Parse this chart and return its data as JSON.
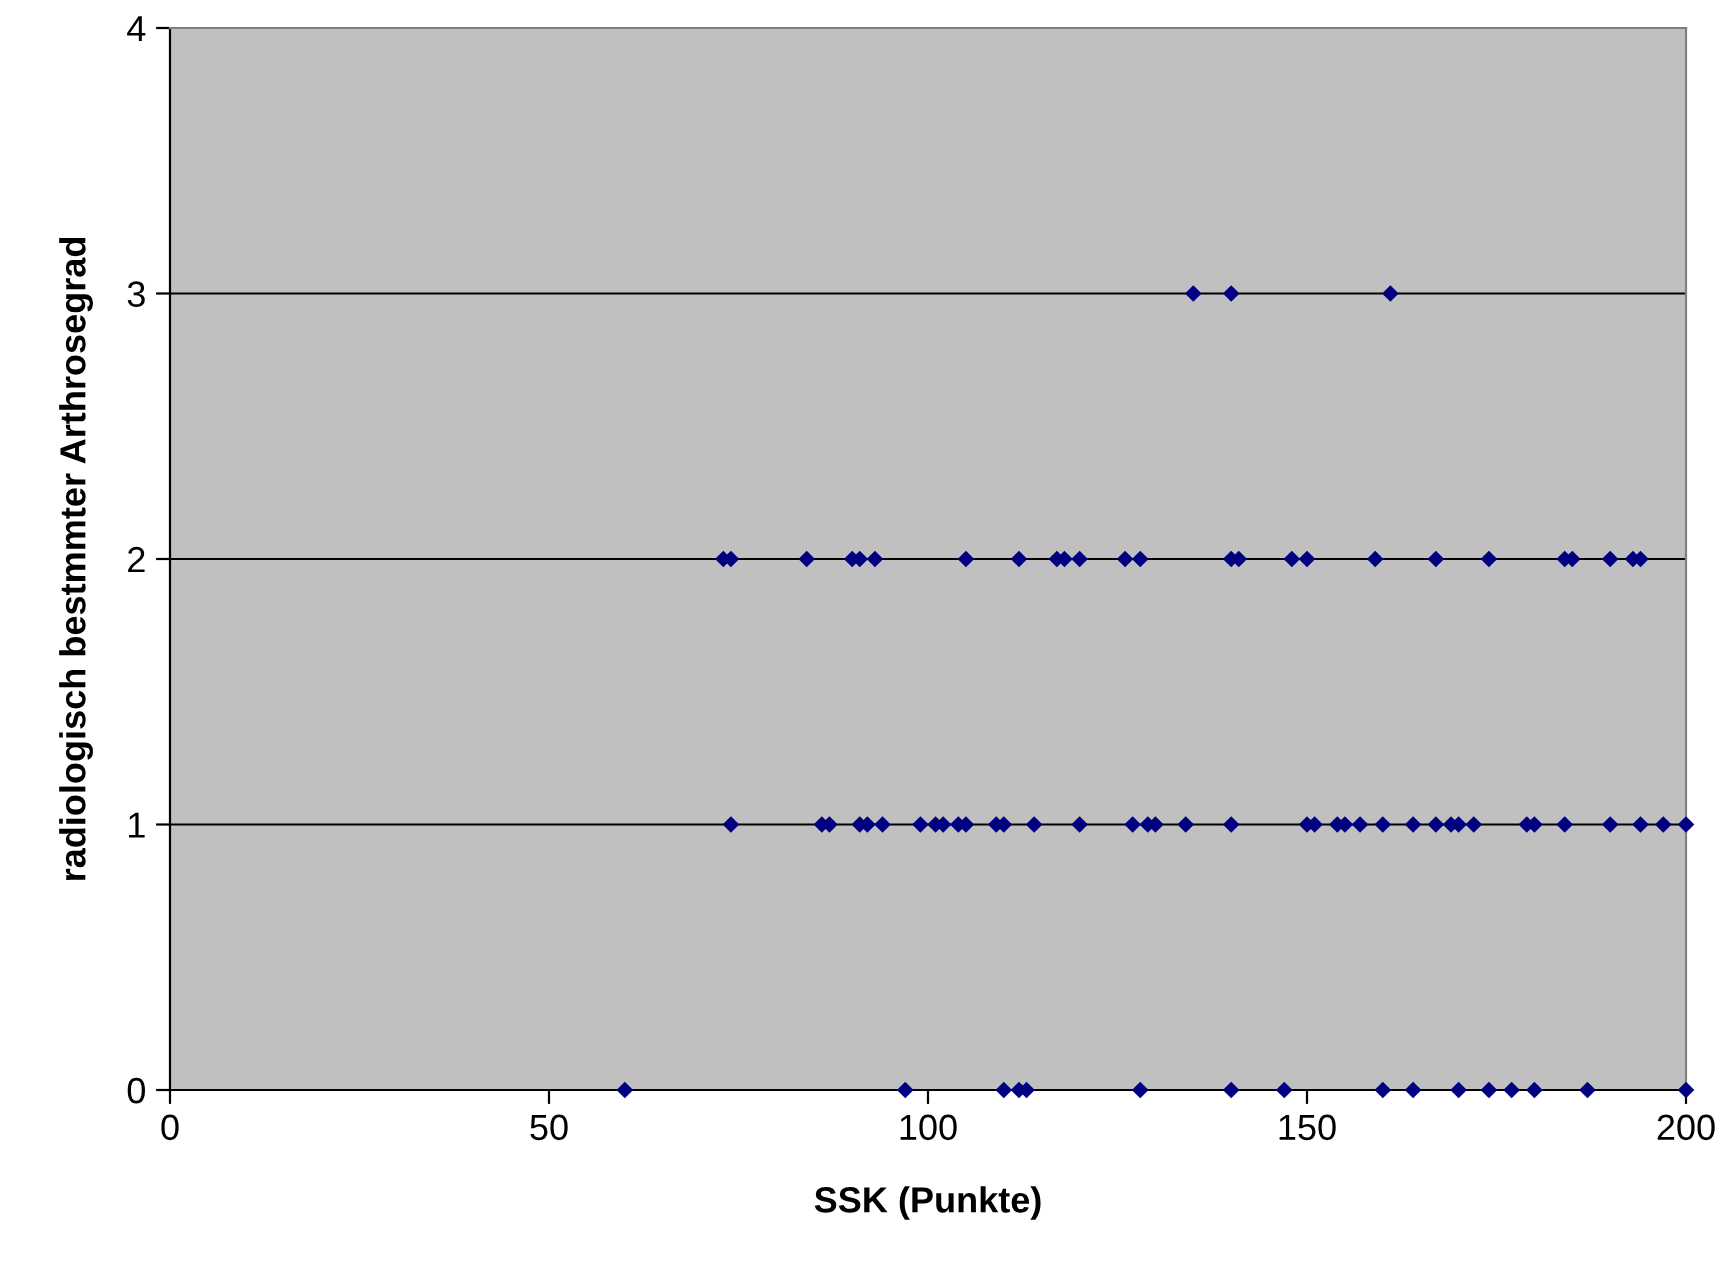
{
  "chart_data": {
    "type": "scatter",
    "xlabel": "SSK (Punkte)",
    "ylabel": "radiologisch bestmmter Arthrosegrad",
    "xlim": [
      0,
      200
    ],
    "xticks": [
      0,
      50,
      100,
      150,
      200
    ],
    "ylim": [
      0,
      4
    ],
    "yticks": [
      0,
      1,
      2,
      3,
      4
    ],
    "grid": "y",
    "marker": "diamond",
    "legend": false,
    "series": [
      {
        "color": "#000080",
        "x": [
          135,
          140,
          161,
          73,
          74,
          84,
          90,
          91,
          93,
          105,
          112,
          117,
          118,
          120,
          126,
          128,
          140,
          141,
          148,
          150,
          159,
          167,
          174,
          184,
          185,
          190,
          193,
          194,
          74,
          86,
          87,
          91,
          92,
          94,
          99,
          101,
          102,
          104,
          105,
          109,
          110,
          114,
          120,
          127,
          129,
          130,
          134,
          140,
          150,
          151,
          154,
          155,
          157,
          160,
          164,
          167,
          169,
          170,
          172,
          179,
          180,
          184,
          190,
          194,
          197,
          200,
          60,
          97,
          110,
          112,
          113,
          128,
          140,
          147,
          160,
          164,
          170,
          174,
          177,
          180,
          187,
          200
        ],
        "values": [
          3,
          3,
          3,
          2,
          2,
          2,
          2,
          2,
          2,
          2,
          2,
          2,
          2,
          2,
          2,
          2,
          2,
          2,
          2,
          2,
          2,
          2,
          2,
          2,
          2,
          2,
          2,
          2,
          1,
          1,
          1,
          1,
          1,
          1,
          1,
          1,
          1,
          1,
          1,
          1,
          1,
          1,
          1,
          1,
          1,
          1,
          1,
          1,
          1,
          1,
          1,
          1,
          1,
          1,
          1,
          1,
          1,
          1,
          1,
          1,
          1,
          1,
          1,
          1,
          1,
          1,
          0,
          0,
          0,
          0,
          0,
          0,
          0,
          0,
          0,
          0,
          0,
          0,
          0,
          0,
          0,
          0
        ]
      }
    ]
  }
}
